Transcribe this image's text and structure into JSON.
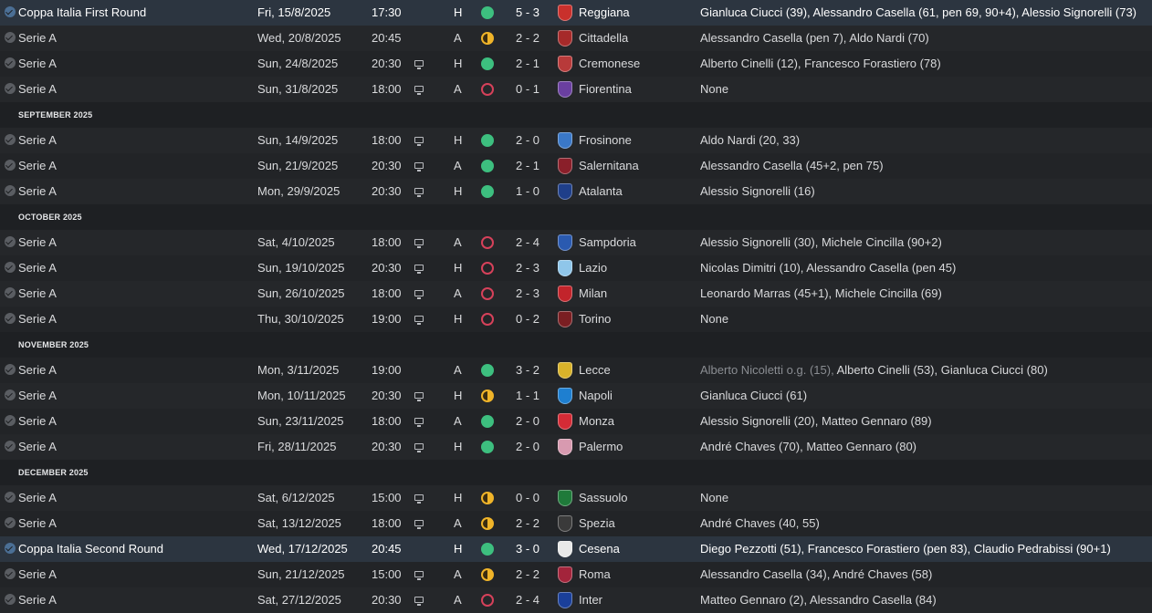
{
  "months": {
    "september": "SEPTEMBER 2025",
    "october": "OCTOBER 2025",
    "november": "NOVEMBER 2025",
    "december": "DECEMBER 2025"
  },
  "matches": [
    {
      "competition": "Coppa Italia First Round",
      "date": "Fri, 15/8/2025",
      "time": "17:30",
      "tv": false,
      "venue": "H",
      "result": "win",
      "score": "5 - 3",
      "opponent": "Reggiana",
      "badge_color": "#c9302c",
      "scorers": "Gianluca Ciucci (39), Alessandro Casella (61, pen 69, 90+4), Alessio Signorelli (73)"
    },
    {
      "competition": "Serie A",
      "date": "Wed, 20/8/2025",
      "time": "20:45",
      "tv": false,
      "venue": "A",
      "result": "draw",
      "score": "2 - 2",
      "opponent": "Cittadella",
      "badge_color": "#a62a2a",
      "scorers": "Alessandro Casella (pen 7), Aldo Nardi (70)"
    },
    {
      "competition": "Serie A",
      "date": "Sun, 24/8/2025",
      "time": "20:30",
      "tv": true,
      "venue": "H",
      "result": "win",
      "score": "2 - 1",
      "opponent": "Cremonese",
      "badge_color": "#b83a3a",
      "scorers": "Alberto Cinelli (12), Francesco Forastiero (78)"
    },
    {
      "competition": "Serie A",
      "date": "Sun, 31/8/2025",
      "time": "18:00",
      "tv": true,
      "venue": "A",
      "result": "loss",
      "score": "0 - 1",
      "opponent": "Fiorentina",
      "badge_color": "#6a3fa0",
      "scorers": "None"
    },
    {
      "competition": "Serie A",
      "date": "Sun, 14/9/2025",
      "time": "18:00",
      "tv": true,
      "venue": "H",
      "result": "win",
      "score": "2 - 0",
      "opponent": "Frosinone",
      "badge_color": "#3a78c8",
      "scorers": "Aldo Nardi (20, 33)"
    },
    {
      "competition": "Serie A",
      "date": "Sun, 21/9/2025",
      "time": "20:30",
      "tv": true,
      "venue": "A",
      "result": "win",
      "score": "2 - 1",
      "opponent": "Salernitana",
      "badge_color": "#8a1f2a",
      "scorers": "Alessandro Casella (45+2, pen 75)"
    },
    {
      "competition": "Serie A",
      "date": "Mon, 29/9/2025",
      "time": "20:30",
      "tv": true,
      "venue": "H",
      "result": "win",
      "score": "1 - 0",
      "opponent": "Atalanta",
      "badge_color": "#1f3f8a",
      "scorers": "Alessio Signorelli (16)"
    },
    {
      "competition": "Serie A",
      "date": "Sat, 4/10/2025",
      "time": "18:00",
      "tv": true,
      "venue": "A",
      "result": "loss",
      "score": "2 - 4",
      "opponent": "Sampdoria",
      "badge_color": "#2a5ab0",
      "scorers": "Alessio Signorelli (30), Michele Cincilla (90+2)"
    },
    {
      "competition": "Serie A",
      "date": "Sun, 19/10/2025",
      "time": "20:30",
      "tv": true,
      "venue": "H",
      "result": "loss",
      "score": "2 - 3",
      "opponent": "Lazio",
      "badge_color": "#8fc6ea",
      "scorers": "Nicolas Dimitri (10), Alessandro Casella (pen 45)"
    },
    {
      "competition": "Serie A",
      "date": "Sun, 26/10/2025",
      "time": "18:00",
      "tv": true,
      "venue": "A",
      "result": "loss",
      "score": "2 - 3",
      "opponent": "Milan",
      "badge_color": "#c2242b",
      "scorers": "Leonardo Marras (45+1), Michele Cincilla (69)"
    },
    {
      "competition": "Serie A",
      "date": "Thu, 30/10/2025",
      "time": "19:00",
      "tv": true,
      "venue": "H",
      "result": "loss",
      "score": "0 - 2",
      "opponent": "Torino",
      "badge_color": "#7a1e22",
      "scorers": "None"
    },
    {
      "competition": "Serie A",
      "date": "Mon, 3/11/2025",
      "time": "19:00",
      "tv": false,
      "venue": "A",
      "result": "win",
      "score": "3 - 2",
      "opponent": "Lecce",
      "badge_color": "#d8b22a",
      "scorers_og": "Alberto Nicoletti o.g. (15), ",
      "scorers": "Alberto Cinelli (53), Gianluca Ciucci (80)"
    },
    {
      "competition": "Serie A",
      "date": "Mon, 10/11/2025",
      "time": "20:30",
      "tv": true,
      "venue": "H",
      "result": "draw",
      "score": "1 - 1",
      "opponent": "Napoli",
      "badge_color": "#1e7fd0",
      "scorers": "Gianluca Ciucci (61)"
    },
    {
      "competition": "Serie A",
      "date": "Sun, 23/11/2025",
      "time": "18:00",
      "tv": true,
      "venue": "A",
      "result": "win",
      "score": "2 - 0",
      "opponent": "Monza",
      "badge_color": "#d52b36",
      "scorers": "Alessio Signorelli (20), Matteo Gennaro (89)"
    },
    {
      "competition": "Serie A",
      "date": "Fri, 28/11/2025",
      "time": "20:30",
      "tv": true,
      "venue": "H",
      "result": "win",
      "score": "2 - 0",
      "opponent": "Palermo",
      "badge_color": "#d89ab0",
      "scorers": "André Chaves (70), Matteo Gennaro (80)"
    },
    {
      "competition": "Serie A",
      "date": "Sat, 6/12/2025",
      "time": "15:00",
      "tv": true,
      "venue": "H",
      "result": "draw",
      "score": "0 - 0",
      "opponent": "Sassuolo",
      "badge_color": "#1f7a3a",
      "scorers": "None"
    },
    {
      "competition": "Serie A",
      "date": "Sat, 13/12/2025",
      "time": "18:00",
      "tv": true,
      "venue": "A",
      "result": "draw",
      "score": "2 - 2",
      "opponent": "Spezia",
      "badge_color": "#3a3a3a",
      "scorers": "André Chaves (40, 55)"
    },
    {
      "competition": "Coppa Italia Second Round",
      "date": "Wed, 17/12/2025",
      "time": "20:45",
      "tv": false,
      "venue": "H",
      "result": "win",
      "score": "3 - 0",
      "opponent": "Cesena",
      "badge_color": "#e8e8e8",
      "scorers": "Diego Pezzotti (51), Francesco Forastiero (pen 83), Claudio Pedrabissi (90+1)"
    },
    {
      "competition": "Serie A",
      "date": "Sun, 21/12/2025",
      "time": "15:00",
      "tv": true,
      "venue": "A",
      "result": "draw",
      "score": "2 - 2",
      "opponent": "Roma",
      "badge_color": "#a3243b",
      "scorers": "Alessandro Casella (34), André Chaves (58)"
    },
    {
      "competition": "Serie A",
      "date": "Sat, 27/12/2025",
      "time": "20:30",
      "tv": true,
      "venue": "A",
      "result": "loss",
      "score": "2 - 4",
      "opponent": "Inter",
      "badge_color": "#1a3f9a",
      "scorers": "Matteo Gennaro (2), Alessandro Casella (84)"
    }
  ]
}
